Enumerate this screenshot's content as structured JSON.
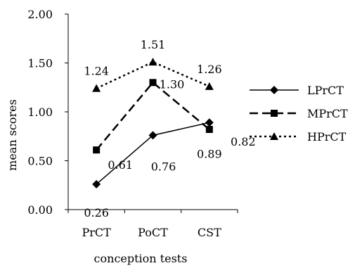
{
  "chart_data": {
    "type": "line",
    "xlabel": "conception tests",
    "ylabel": "mean scores",
    "categories": [
      "PrCT",
      "PoCT",
      "CST"
    ],
    "ylim": [
      0,
      2
    ],
    "yticks": [
      "0.00",
      "0.50",
      "1.00",
      "1.50",
      "2.00"
    ],
    "grid": false,
    "legend_position": "right",
    "series": [
      {
        "name": "LPrCT",
        "values": [
          0.26,
          0.76,
          0.89
        ],
        "data_labels": [
          "0.26",
          "0.76",
          "0.89"
        ],
        "line_style": "solid",
        "marker": "diamond"
      },
      {
        "name": "MPrCT",
        "values": [
          0.61,
          1.3,
          0.82
        ],
        "data_labels": [
          "0.61",
          "1.30",
          "0.82"
        ],
        "line_style": "dashed",
        "marker": "square"
      },
      {
        "name": "HPrCT",
        "values": [
          1.24,
          1.51,
          1.26
        ],
        "data_labels": [
          "1.24",
          "1.51",
          "1.26"
        ],
        "line_style": "dotted",
        "marker": "triangle"
      }
    ]
  }
}
